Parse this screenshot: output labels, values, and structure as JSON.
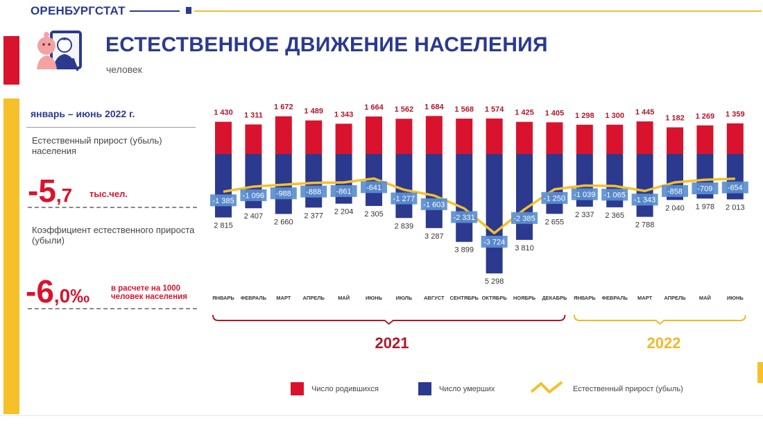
{
  "header": {
    "org": "ОРЕНБУРГСТАТ"
  },
  "title": "ЕСТЕСТВЕННОЕ ДВИЖЕНИЕ НАСЕЛЕНИЯ",
  "subtitle": "человек",
  "summary": {
    "period": "январь – июнь 2022 г.",
    "natural_growth_label": "Естественный прирост (убыль) населения",
    "natural_growth_value_int": "-5",
    "natural_growth_value_dec": ",7",
    "natural_growth_unit": "тыс.чел.",
    "coef_label": "Коэффициент естественного прироста (убыли)",
    "coef_value_int": "-6",
    "coef_value_dec": ",0‰",
    "coef_note": "в расчете на 1000 человек населения"
  },
  "colors": {
    "births": "#d9132e",
    "deaths": "#2b3a8f",
    "growth": "#f5c02a",
    "growth_label_bg": "#5b8fd0"
  },
  "icons": [
    "family-icon"
  ],
  "chart_data": {
    "type": "bar",
    "categories": [
      "ЯНВАРЬ",
      "ФЕВРАЛЬ",
      "МАРТ",
      "АПРЕЛЬ",
      "МАЙ",
      "ИЮНЬ",
      "ИЮЛЬ",
      "АВГУСТ",
      "СЕНТЯБРЬ",
      "ОКТЯБРЬ",
      "НОЯБРЬ",
      "ДЕКАБРЬ",
      "ЯНВАРЬ",
      "ФЕВРАЛЬ",
      "МАРТ",
      "АПРЕЛЬ",
      "МАЙ",
      "ИЮНЬ"
    ],
    "years": [
      {
        "label": "2021",
        "start": 0,
        "end": 11
      },
      {
        "label": "2022",
        "start": 12,
        "end": 17
      }
    ],
    "series": [
      {
        "name": "Число родившихся",
        "values": [
          1430,
          1311,
          1672,
          1489,
          1343,
          1664,
          1562,
          1684,
          1568,
          1574,
          1425,
          1405,
          1298,
          1300,
          1445,
          1182,
          1269,
          1359
        ],
        "labels": [
          "1 430",
          "1 311",
          "1 672",
          "1 489",
          "1 343",
          "1 664",
          "1 562",
          "1 684",
          "1 568",
          "1 574",
          "1 425",
          "1 405",
          "1 298",
          "1 300",
          "1 445",
          "1 182",
          "1 269",
          "1 359"
        ]
      },
      {
        "name": "Число умерших",
        "values": [
          2815,
          2407,
          2660,
          2377,
          2204,
          2305,
          2839,
          3287,
          3899,
          5298,
          3810,
          2655,
          2337,
          2365,
          2788,
          2040,
          1978,
          2013
        ],
        "labels": [
          "2 815",
          "2 407",
          "2 660",
          "2 377",
          "2 204",
          "2 305",
          "2 839",
          "3 287",
          "3 899",
          "5 298",
          "3 810",
          "2 655",
          "2 337",
          "2 365",
          "2 788",
          "2 040",
          "1 978",
          "2 013"
        ]
      },
      {
        "name": "Естественный прирост (убыль)",
        "values": [
          -1385,
          -1096,
          -988,
          -888,
          -861,
          -641,
          -1277,
          -1603,
          -2331,
          -3724,
          -2385,
          -1250,
          -1039,
          -1065,
          -1343,
          -858,
          -709,
          -654
        ],
        "labels": [
          "-1 385",
          "-1 096",
          "-988",
          "-888",
          "-861",
          "-641",
          "-1 277",
          "-1 603",
          "-2 331",
          "-3 724",
          "-2 385",
          "-1 250",
          "-1 039",
          "-1 065",
          "-1 343",
          "-858",
          "-709",
          "-654"
        ]
      }
    ]
  }
}
